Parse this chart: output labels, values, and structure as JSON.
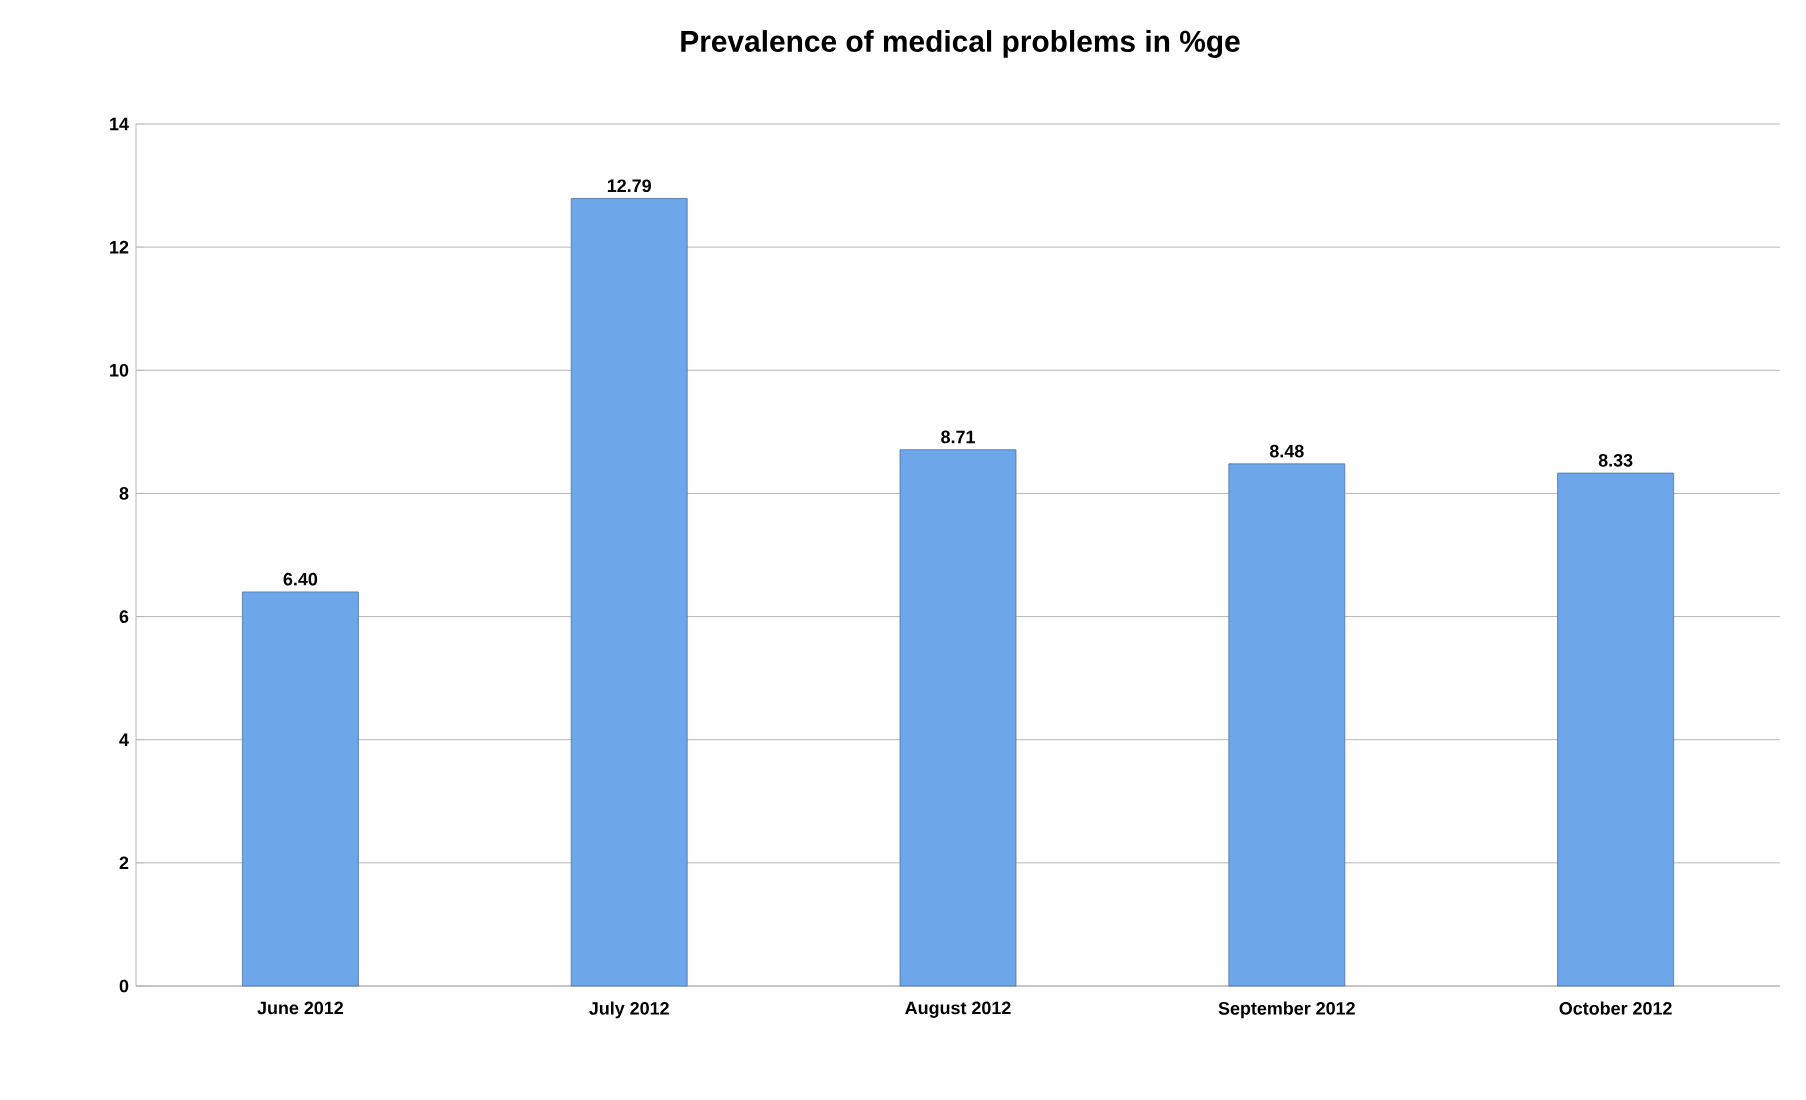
{
  "chart_data": {
    "type": "bar",
    "title": "Prevalence of medical problems in %ge",
    "categories": [
      "June 2012",
      "July 2012",
      "August 2012",
      "September 2012",
      "October 2012"
    ],
    "values": [
      6.4,
      12.79,
      8.71,
      8.48,
      8.33
    ],
    "value_labels": [
      "6.40",
      "12.79",
      "8.71",
      "8.48",
      "8.33"
    ],
    "color": "#6ea6ea",
    "ylim": [
      0,
      14
    ],
    "yticks": [
      0,
      2,
      4,
      6,
      8,
      10,
      12,
      14
    ],
    "grid": "y"
  }
}
